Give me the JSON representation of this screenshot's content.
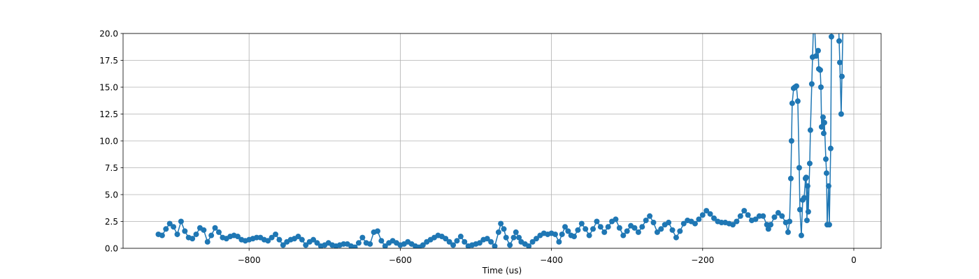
{
  "chart_data": {
    "type": "line",
    "xlabel": "Time (us)",
    "color": "#1f77b4",
    "grid": true,
    "marker": "o",
    "xlim": [
      -966.7,
      36.1
    ],
    "ylim": [
      0,
      20
    ],
    "xticks": [
      {
        "value": -800,
        "label": "−800"
      },
      {
        "value": -600,
        "label": "−600"
      },
      {
        "value": -400,
        "label": "−400"
      },
      {
        "value": -200,
        "label": "−200"
      },
      {
        "value": 0,
        "label": "0"
      }
    ],
    "yticks": [
      {
        "value": 0,
        "label": "0.0"
      },
      2.5,
      {
        "value": 5,
        "label": "5.0"
      },
      7.5,
      {
        "value": 10,
        "label": "10.0"
      },
      12.5,
      {
        "value": 15,
        "label": "15.0"
      },
      17.5,
      {
        "value": 20,
        "label": "20.0"
      }
    ],
    "x": [
      -920,
      -915,
      -910,
      -905,
      -900,
      -895,
      -890,
      -885,
      -880,
      -875,
      -870,
      -865,
      -860,
      -855,
      -850,
      -845,
      -840,
      -835,
      -830,
      -825,
      -820,
      -815,
      -810,
      -805,
      -800,
      -795,
      -790,
      -785,
      -780,
      -775,
      -770,
      -765,
      -760,
      -755,
      -750,
      -745,
      -740,
      -735,
      -730,
      -725,
      -720,
      -715,
      -710,
      -705,
      -700,
      -695,
      -690,
      -685,
      -680,
      -675,
      -670,
      -665,
      -660,
      -655,
      -650,
      -645,
      -640,
      -635,
      -630,
      -625,
      -620,
      -615,
      -610,
      -605,
      -600,
      -595,
      -590,
      -585,
      -580,
      -575,
      -570,
      -565,
      -560,
      -555,
      -550,
      -545,
      -540,
      -535,
      -530,
      -525,
      -520,
      -515,
      -510,
      -505,
      -500,
      -495,
      -490,
      -485,
      -480,
      -475,
      -470,
      -467,
      -463,
      -460,
      -455,
      -450,
      -447,
      -443,
      -440,
      -435,
      -430,
      -425,
      -420,
      -415,
      -410,
      -405,
      -400,
      -395,
      -390,
      -386,
      -382,
      -378,
      -374,
      -370,
      -365,
      -360,
      -355,
      -350,
      -345,
      -340,
      -335,
      -330,
      -325,
      -320,
      -315,
      -310,
      -305,
      -300,
      -295,
      -290,
      -285,
      -280,
      -275,
      -270,
      -265,
      -260,
      -255,
      -250,
      -245,
      -240,
      -235,
      -230,
      -225,
      -220,
      -215,
      -210,
      -205,
      -200,
      -195,
      -190,
      -185,
      -180,
      -175,
      -170,
      -165,
      -160,
      -155,
      -150,
      -145,
      -140,
      -135,
      -130,
      -125,
      -120,
      -115,
      -113,
      -110,
      -105,
      -100,
      -95,
      -90,
      -87,
      -85,
      -83.3,
      -82.4,
      -81.5,
      -79.6,
      -77.8,
      -75.9,
      -74.1,
      -72.2,
      -71.3,
      -69.4,
      -67.6,
      -65.7,
      -63.9,
      -63.0,
      -62.0,
      -61.1,
      -60.2,
      -58.3,
      -57.4,
      -55.6,
      -54.6,
      -52.8,
      -50.0,
      -47.2,
      -46.3,
      -44.4,
      -43.5,
      -42.6,
      -40.7,
      -39.8,
      -38.9,
      -37.0,
      -36.1,
      -35.2,
      -33.3,
      -32.4,
      -30.6,
      -29.6,
      -27.8,
      -21.3,
      -19.4,
      -18.5,
      -16.7,
      -15.7,
      -13.9
    ],
    "values": [
      1.3,
      1.2,
      1.8,
      2.3,
      2.0,
      1.3,
      2.5,
      1.6,
      1.0,
      0.9,
      1.3,
      1.9,
      1.7,
      0.6,
      1.2,
      1.9,
      1.5,
      1.0,
      0.9,
      1.1,
      1.2,
      1.1,
      0.8,
      0.7,
      0.8,
      0.9,
      1.0,
      1.0,
      0.8,
      0.7,
      1.0,
      1.3,
      0.8,
      0.3,
      0.6,
      0.8,
      0.9,
      1.1,
      0.8,
      0.3,
      0.6,
      0.8,
      0.5,
      0.2,
      0.3,
      0.5,
      0.3,
      0.2,
      0.3,
      0.4,
      0.4,
      0.2,
      0.1,
      0.5,
      1.0,
      0.5,
      0.4,
      1.5,
      1.6,
      0.7,
      0.2,
      0.5,
      0.7,
      0.5,
      0.3,
      0.4,
      0.6,
      0.4,
      0.2,
      0.1,
      0.3,
      0.6,
      0.8,
      1.0,
      1.2,
      1.1,
      0.9,
      0.6,
      0.3,
      0.7,
      1.1,
      0.6,
      0.2,
      0.3,
      0.4,
      0.5,
      0.8,
      0.9,
      0.6,
      0.2,
      1.5,
      2.3,
      1.8,
      1.0,
      0.3,
      1.0,
      1.5,
      1.0,
      0.6,
      0.4,
      0.2,
      0.6,
      0.9,
      1.2,
      1.4,
      1.3,
      1.4,
      1.3,
      0.6,
      1.3,
      2.0,
      1.6,
      1.2,
      1.1,
      1.7,
      2.3,
      1.8,
      1.2,
      1.8,
      2.5,
      2.0,
      1.5,
      2.0,
      2.5,
      2.7,
      1.9,
      1.2,
      1.6,
      2.1,
      1.9,
      1.5,
      2.0,
      2.6,
      3.0,
      2.4,
      1.5,
      1.8,
      2.2,
      2.4,
      1.7,
      1.0,
      1.6,
      2.3,
      2.6,
      2.5,
      2.3,
      2.7,
      3.1,
      3.5,
      3.2,
      2.8,
      2.5,
      2.4,
      2.4,
      2.3,
      2.2,
      2.5,
      3.0,
      3.5,
      3.1,
      2.6,
      2.7,
      3.0,
      3.0,
      2.2,
      1.8,
      2.2,
      2.9,
      3.3,
      3.0,
      2.4,
      1.5,
      2.5,
      6.5,
      10.0,
      13.5,
      14.9,
      15.0,
      15.1,
      13.7,
      7.5,
      3.6,
      1.2,
      4.5,
      4.7,
      6.5,
      6.6,
      2.6,
      5.8,
      3.4,
      7.9,
      11.0,
      15.3,
      17.8,
      22.0,
      17.9,
      18.4,
      16.7,
      16.6,
      15.0,
      11.3,
      12.2,
      10.7,
      11.7,
      8.3,
      7.0,
      2.2,
      5.8,
      2.2,
      9.3,
      19.7,
      23.0,
      23.0,
      19.3,
      17.3,
      12.5,
      16.0,
      22.0
    ]
  }
}
